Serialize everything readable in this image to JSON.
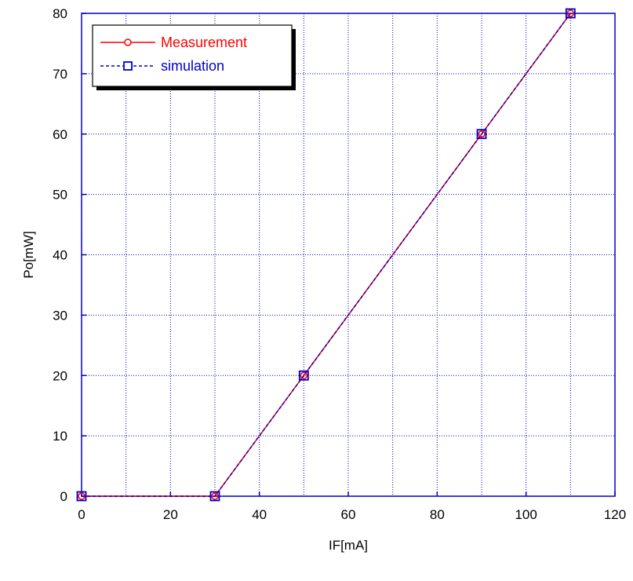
{
  "chart_data": {
    "type": "line",
    "xlabel": "IF[mA]",
    "ylabel": "Po[mW]",
    "xlim": [
      0,
      120
    ],
    "ylim": [
      0,
      80
    ],
    "xticks": [
      0,
      20,
      40,
      60,
      80,
      100,
      120
    ],
    "yticks": [
      0,
      10,
      20,
      30,
      40,
      50,
      60,
      70,
      80
    ],
    "x_gridlines": [
      0,
      10,
      20,
      30,
      40,
      50,
      60,
      70,
      80,
      90,
      100,
      110,
      120
    ],
    "y_gridlines": [
      0,
      10,
      20,
      30,
      40,
      50,
      60,
      70,
      80
    ],
    "grid": true,
    "legend_position": "top-left",
    "series": [
      {
        "name": "Measurement",
        "color": "#ff0000",
        "line_style": "solid",
        "marker": "circle",
        "x": [
          0,
          30,
          50,
          90,
          110
        ],
        "y": [
          0,
          0,
          20,
          60,
          80
        ]
      },
      {
        "name": "simulation",
        "color": "#0000c8",
        "line_style": "dashed",
        "marker": "square",
        "x": [
          0,
          30,
          50,
          90,
          110
        ],
        "y": [
          0,
          0,
          20,
          60,
          80
        ]
      }
    ]
  }
}
